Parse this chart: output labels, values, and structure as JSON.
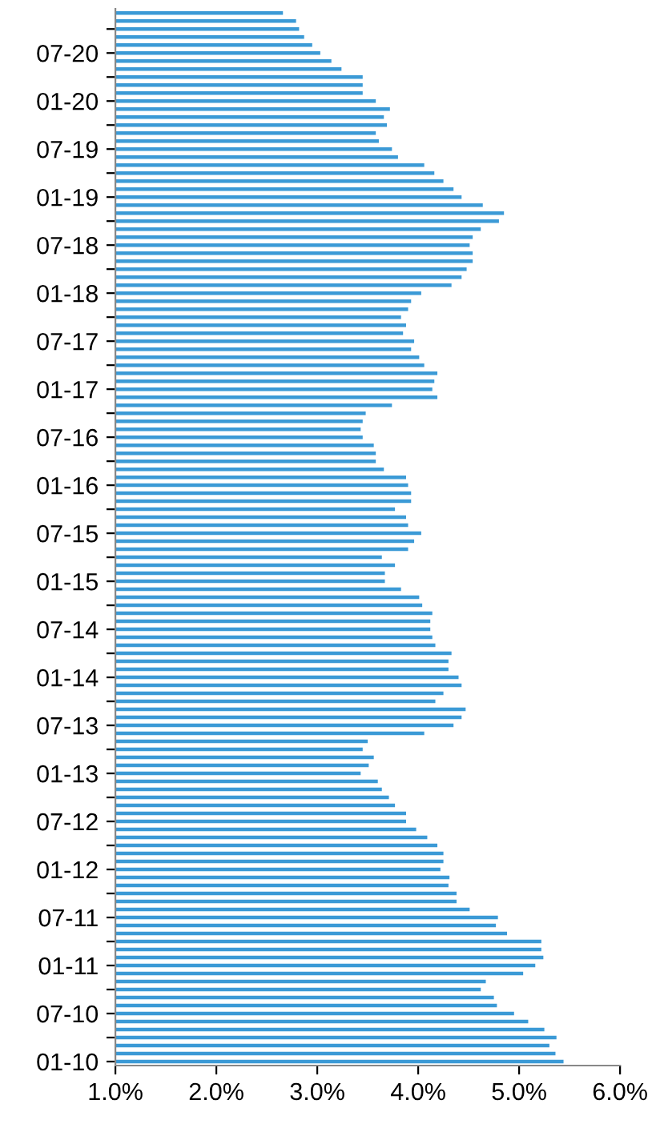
{
  "chart_data": {
    "type": "bar",
    "orientation": "horizontal",
    "color": "#3b9ad6",
    "grid": false,
    "legend": false,
    "categories": [
      null,
      null,
      null,
      null,
      null,
      "07-20",
      null,
      null,
      null,
      null,
      null,
      "01-20",
      null,
      null,
      null,
      null,
      null,
      "07-19",
      null,
      null,
      null,
      null,
      null,
      "01-19",
      null,
      null,
      null,
      null,
      null,
      "07-18",
      null,
      null,
      null,
      null,
      null,
      "01-18",
      null,
      null,
      null,
      null,
      null,
      "07-17",
      null,
      null,
      null,
      null,
      null,
      "01-17",
      null,
      null,
      null,
      null,
      null,
      "07-16",
      null,
      null,
      null,
      null,
      null,
      "01-16",
      null,
      null,
      null,
      null,
      null,
      "07-15",
      null,
      null,
      null,
      null,
      null,
      "01-15",
      null,
      null,
      null,
      null,
      null,
      "07-14",
      null,
      null,
      null,
      null,
      null,
      "01-14",
      null,
      null,
      null,
      null,
      null,
      "07-13",
      null,
      null,
      null,
      null,
      null,
      "01-13",
      null,
      null,
      null,
      null,
      null,
      "07-12",
      null,
      null,
      null,
      null,
      null,
      "01-12",
      null,
      null,
      null,
      null,
      null,
      "07-11",
      null,
      null,
      null,
      null,
      null,
      "01-11",
      null,
      null,
      null,
      null,
      null,
      "07-10",
      null,
      null,
      null,
      null,
      null,
      "01-10"
    ],
    "values": [
      2.66,
      2.79,
      2.82,
      2.87,
      2.95,
      3.03,
      3.14,
      3.24,
      3.45,
      3.45,
      3.45,
      3.58,
      3.72,
      3.66,
      3.69,
      3.58,
      3.61,
      3.74,
      3.8,
      4.06,
      4.16,
      4.25,
      4.35,
      4.43,
      4.64,
      4.85,
      4.8,
      4.62,
      4.54,
      4.51,
      4.54,
      4.54,
      4.48,
      4.43,
      4.33,
      4.03,
      3.93,
      3.9,
      3.83,
      3.88,
      3.85,
      3.96,
      3.93,
      4.01,
      4.06,
      4.19,
      4.16,
      4.14,
      4.19,
      3.74,
      3.48,
      3.45,
      3.43,
      3.45,
      3.56,
      3.58,
      3.58,
      3.66,
      3.88,
      3.9,
      3.93,
      3.93,
      3.77,
      3.88,
      3.9,
      4.03,
      3.96,
      3.9,
      3.64,
      3.77,
      3.67,
      3.67,
      3.83,
      4.01,
      4.04,
      4.14,
      4.12,
      4.12,
      4.14,
      4.17,
      4.33,
      4.3,
      4.3,
      4.4,
      4.43,
      4.25,
      4.17,
      4.47,
      4.43,
      4.35,
      4.06,
      3.5,
      3.45,
      3.56,
      3.51,
      3.43,
      3.6,
      3.64,
      3.71,
      3.77,
      3.88,
      3.88,
      3.98,
      4.09,
      4.19,
      4.25,
      4.25,
      4.22,
      4.31,
      4.3,
      4.38,
      4.38,
      4.51,
      4.79,
      4.77,
      4.88,
      5.22,
      5.22,
      5.24,
      5.16,
      5.04,
      4.67,
      4.62,
      4.75,
      4.78,
      4.95,
      5.09,
      5.25,
      5.37,
      5.3,
      5.36,
      5.44
    ],
    "xlim": [
      1.0,
      6.0
    ],
    "xticks": [
      {
        "value": 1.0,
        "label": "1.0%"
      },
      {
        "value": 2.0,
        "label": "2.0%"
      },
      {
        "value": 3.0,
        "label": "3.0%"
      },
      {
        "value": 4.0,
        "label": "4.0%"
      },
      {
        "value": 5.0,
        "label": "5.0%"
      },
      {
        "value": 6.0,
        "label": "6.0%"
      }
    ]
  }
}
